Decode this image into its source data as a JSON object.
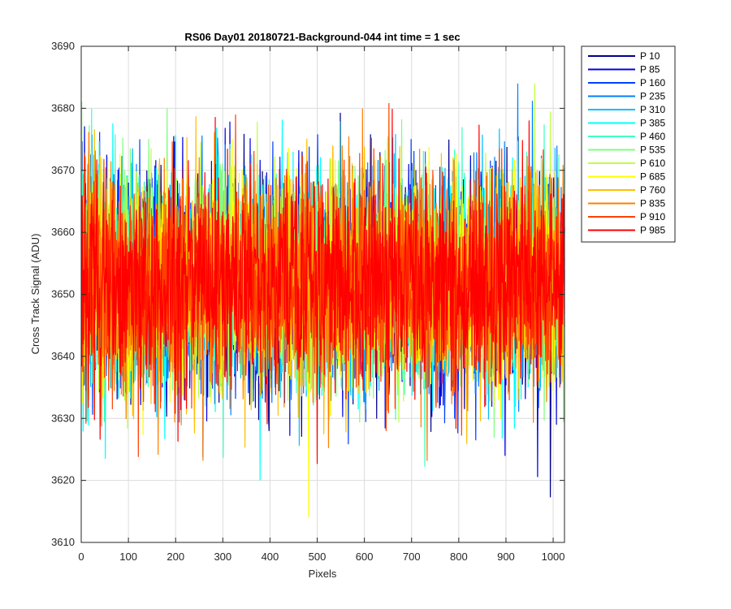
{
  "chart_data": {
    "type": "line",
    "title": "RS06 Day01 20180721-Background-044 int time = 1 sec",
    "xlabel": "Pixels",
    "ylabel": "Cross Track Signal (ADU)",
    "xlim": [
      0,
      1024
    ],
    "ylim": [
      3610,
      3690
    ],
    "xticks": [
      0,
      100,
      200,
      300,
      400,
      500,
      600,
      700,
      800,
      900,
      1000
    ],
    "yticks": [
      3610,
      3620,
      3630,
      3640,
      3650,
      3660,
      3670,
      3680,
      3690
    ],
    "grid": true,
    "legend_position": "outside-right",
    "signal_summary": {
      "mean": 3652,
      "typical_range": [
        3635,
        3670
      ],
      "min_observed": 3614,
      "max_observed": 3684
    },
    "series": [
      {
        "name": "P 10",
        "color": "#00008f",
        "mean": 3652
      },
      {
        "name": "P 85",
        "color": "#0000e6",
        "mean": 3652
      },
      {
        "name": "P 160",
        "color": "#0040ff",
        "mean": 3652
      },
      {
        "name": "P 235",
        "color": "#0080ff",
        "mean": 3652
      },
      {
        "name": "P 310",
        "color": "#00bfff",
        "mean": 3652
      },
      {
        "name": "P 385",
        "color": "#00ffff",
        "mean": 3652
      },
      {
        "name": "P 460",
        "color": "#40ffbf",
        "mean": 3652
      },
      {
        "name": "P 535",
        "color": "#80ff80",
        "mean": 3652
      },
      {
        "name": "P 610",
        "color": "#bfff40",
        "mean": 3652
      },
      {
        "name": "P 685",
        "color": "#ffff00",
        "mean": 3652
      },
      {
        "name": "P 760",
        "color": "#ffbf00",
        "mean": 3652
      },
      {
        "name": "P 835",
        "color": "#ff8000",
        "mean": 3652
      },
      {
        "name": "P 910",
        "color": "#ff4000",
        "mean": 3652
      },
      {
        "name": "P 985",
        "color": "#ff0000",
        "mean": 3652
      }
    ]
  }
}
